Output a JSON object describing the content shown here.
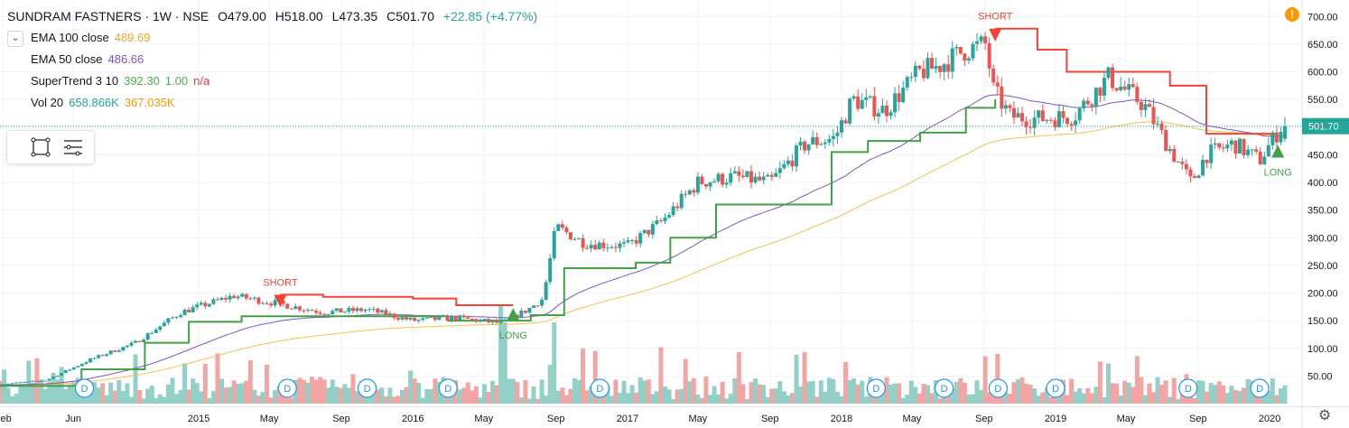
{
  "header": {
    "symbol": "SUNDRAM FASTNERS · 1W · NSE",
    "open": "O479.00",
    "high": "H518.00",
    "low": "L473.35",
    "close": "C501.70",
    "change": "+22.85 (+4.77%)"
  },
  "indicators": [
    {
      "label": "EMA 100 close",
      "values": [
        "489.69"
      ],
      "colors": [
        "#f5a623"
      ]
    },
    {
      "label": "EMA 50 close",
      "values": [
        "486.66"
      ],
      "colors": [
        "#7e57c2"
      ]
    },
    {
      "label": "SuperTrend 3 10",
      "values": [
        "392.30",
        "1.00",
        "n/a"
      ],
      "colors": [
        "#4caf50",
        "#4caf50",
        "#f23645"
      ]
    },
    {
      "label": "Vol 20",
      "values": [
        "658.866K",
        "367.035K"
      ],
      "colors": [
        "#26a69a",
        "#ff9800"
      ]
    }
  ],
  "collapse_icon": "chevron-down-icon",
  "warning_icon": "!",
  "settings_icon": "⚙",
  "price_label": "501.70",
  "colors": {
    "up": "#26a69a",
    "down": "#ef5350",
    "ema100": "#f5c14b",
    "ema50": "#7e57c2",
    "st_up": "#43a047",
    "st_down": "#f44336",
    "price_line": "#26a69a"
  },
  "dividend_marker": "D",
  "chart_data": {
    "type": "candlestick",
    "symbol": "SUNDRAM FASTNERS",
    "interval": "1W",
    "exchange": "NSE",
    "y_axis": {
      "ticks": [
        "50.00",
        "100.00",
        "150.00",
        "200.00",
        "250.00",
        "300.00",
        "350.00",
        "400.00",
        "450.00",
        "500.00",
        "550.00",
        "600.00",
        "650.00",
        "700.00"
      ],
      "range": [
        0,
        720
      ]
    },
    "x_axis": {
      "ticks": [
        "Feb",
        "Jun",
        "2015",
        "May",
        "Sep",
        "2016",
        "May",
        "Sep",
        "2017",
        "May",
        "Sep",
        "2018",
        "May",
        "Sep",
        "2019",
        "May",
        "Sep",
        "2020"
      ]
    },
    "x_range": [
      "2014-01-27",
      "2020-01-27"
    ],
    "anchors": {
      "dates": [
        "2014-01-27",
        "2014-04-15",
        "2014-07-01",
        "2014-09-15",
        "2014-12-01",
        "2015-03-01",
        "2015-05-20",
        "2015-08-01",
        "2015-10-15",
        "2016-01-01",
        "2016-03-15",
        "2016-06-01",
        "2016-07-15",
        "2016-08-10",
        "2016-09-01",
        "2016-10-20",
        "2017-01-01",
        "2017-03-01",
        "2017-05-01",
        "2017-07-01",
        "2017-09-01",
        "2017-11-01",
        "2017-12-20",
        "2018-01-20",
        "2018-03-15",
        "2018-05-15",
        "2018-06-15",
        "2018-08-01",
        "2018-09-05",
        "2018-09-15",
        "2018-10-15",
        "2018-12-01",
        "2019-02-01",
        "2019-04-01",
        "2019-06-01",
        "2019-07-15",
        "2019-08-20",
        "2019-09-15",
        "2019-11-01",
        "2019-12-15",
        "2020-01-20"
      ],
      "close": [
        35,
        42,
        80,
        110,
        165,
        195,
        180,
        165,
        170,
        150,
        155,
        145,
        170,
        190,
        320,
        290,
        285,
        330,
        400,
        410,
        400,
        470,
        480,
        550,
        530,
        600,
        610,
        640,
        650,
        570,
        520,
        515,
        520,
        590,
        540,
        460,
        400,
        450,
        470,
        440,
        500
      ]
    },
    "ema50_last": 486.66,
    "ema100_last": 489.69,
    "supertrend": {
      "segments": [
        {
          "dir": "up",
          "dates": [
            "2014-01-27",
            "2014-06-15",
            "2014-10-01",
            "2014-12-15",
            "2015-03-15",
            "2015-07-01",
            "2015-10-01",
            "2016-03-01",
            "2016-06-20"
          ],
          "levels": [
            32,
            62,
            110,
            148,
            158,
            158,
            158,
            150,
            150
          ]
        },
        {
          "dir": "down",
          "dates": [
            "2015-05-20",
            "2015-06-05",
            "2015-08-01",
            "2016-01-01",
            "2016-03-15",
            "2016-06-20"
          ],
          "levels": [
            197,
            197,
            193,
            190,
            178,
            178
          ]
        },
        {
          "dir": "up",
          "dates": [
            "2016-06-20",
            "2016-07-20",
            "2016-09-15",
            "2016-10-20",
            "2017-01-15",
            "2017-03-15",
            "2017-06-01",
            "2017-08-15",
            "2017-10-15",
            "2017-12-15",
            "2018-02-15",
            "2018-05-15",
            "2018-08-01",
            "2018-09-20"
          ],
          "levels": [
            150,
            160,
            245,
            245,
            255,
            300,
            360,
            360,
            360,
            455,
            475,
            490,
            535,
            550
          ]
        },
        {
          "dir": "down",
          "dates": [
            "2018-09-20",
            "2018-10-15",
            "2018-12-01",
            "2019-01-20",
            "2019-04-01",
            "2019-06-01",
            "2019-07-15",
            "2019-09-15",
            "2019-11-15",
            "2020-01-15"
          ],
          "levels": [
            678,
            678,
            640,
            600,
            600,
            600,
            575,
            488,
            488,
            488
          ]
        }
      ]
    },
    "signals": [
      {
        "type": "SHORT",
        "date": "2015-05-20",
        "price": 197
      },
      {
        "type": "LONG",
        "date": "2016-06-20",
        "price": 150
      },
      {
        "type": "SHORT",
        "date": "2018-09-20",
        "price": 678
      },
      {
        "type": "LONG",
        "date": "2020-01-15",
        "price": 445
      }
    ],
    "dividends": [
      "2014-06-20",
      "2015-06-01",
      "2015-10-15",
      "2016-03-01",
      "2016-11-15",
      "2018-03-01",
      "2018-06-25",
      "2018-09-25",
      "2019-01-01",
      "2019-08-15",
      "2019-12-15"
    ],
    "last_price": 501.7
  }
}
